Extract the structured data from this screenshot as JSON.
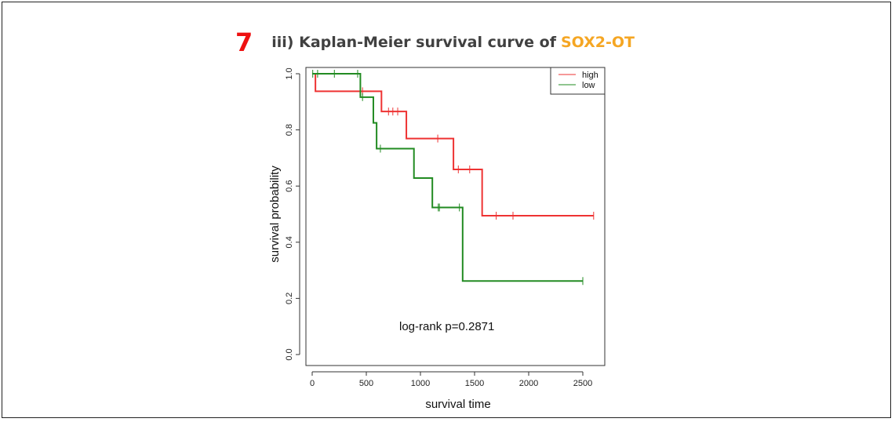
{
  "figure": {
    "number": "7",
    "title_prefix": "iii) Kaplan-Meier survival curve of",
    "gene": "SOX2-OT",
    "gene_color": "#f5a623",
    "number_color": "#ee1111"
  },
  "chart_data": {
    "type": "line",
    "subtype": "kaplan-meier step",
    "title": "iii) Kaplan-Meier survival curve of SOX2-OT",
    "xlabel": "survival time",
    "ylabel": "survival probability",
    "xlim": [
      0,
      2700
    ],
    "ylim": [
      0,
      1.0
    ],
    "xticks": [
      0,
      500,
      1000,
      1500,
      2000,
      2500
    ],
    "xtick_labels": [
      "0",
      "500",
      "1000",
      "1500",
      "2000",
      "2500"
    ],
    "yticks": [
      0.0,
      0.2,
      0.4,
      0.6,
      0.8,
      1.0
    ],
    "ytick_labels": [
      "0.0",
      "0.2",
      "0.4",
      "0.6",
      "0.8",
      "1.0"
    ],
    "grid": false,
    "legend": {
      "placement": "top-right",
      "entries": [
        "high",
        "low"
      ]
    },
    "annotation": "log-rank p=0.2871",
    "series": [
      {
        "name": "high",
        "color": "#ee3333",
        "steps": [
          [
            0,
            1.0
          ],
          [
            30,
            0.9375
          ],
          [
            640,
            0.8654
          ],
          [
            870,
            0.7692
          ],
          [
            1305,
            0.6593
          ],
          [
            1570,
            0.4945
          ]
        ],
        "end_time": 2600,
        "censored": [
          [
            465,
            0.9375
          ],
          [
            705,
            0.8654
          ],
          [
            745,
            0.8654
          ],
          [
            790,
            0.8654
          ],
          [
            1160,
            0.7692
          ],
          [
            1350,
            0.6593
          ],
          [
            1455,
            0.6593
          ],
          [
            1700,
            0.4945
          ],
          [
            1855,
            0.4945
          ],
          [
            2600,
            0.4945
          ]
        ]
      },
      {
        "name": "low",
        "color": "#228b22",
        "steps": [
          [
            0,
            1.0
          ],
          [
            445,
            0.9167
          ],
          [
            565,
            0.825
          ],
          [
            595,
            0.7333
          ],
          [
            940,
            0.6286
          ],
          [
            1110,
            0.5238
          ],
          [
            1390,
            0.2619
          ]
        ],
        "end_time": 2500,
        "censored": [
          [
            5,
            1.0
          ],
          [
            50,
            1.0
          ],
          [
            205,
            1.0
          ],
          [
            420,
            1.0
          ],
          [
            465,
            0.9167
          ],
          [
            630,
            0.7333
          ],
          [
            1165,
            0.5238
          ],
          [
            1175,
            0.5238
          ],
          [
            1360,
            0.5238
          ],
          [
            2500,
            0.2619
          ]
        ]
      }
    ]
  }
}
